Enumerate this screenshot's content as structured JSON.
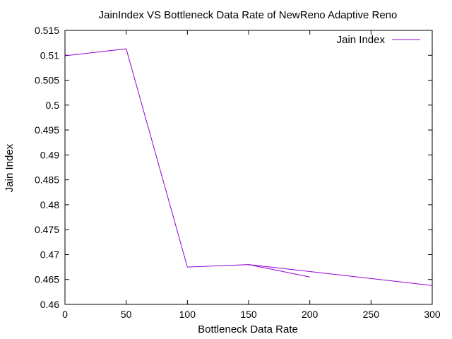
{
  "chart_data": {
    "type": "line",
    "title": "JainIndex VS Bottleneck Data Rate of NewReno  Adaptive Reno",
    "xlabel": "Bottleneck Data Rate",
    "ylabel": "Jain Index",
    "xlim": [
      0,
      300
    ],
    "ylim": [
      0.46,
      0.515
    ],
    "xticks": [
      0,
      50,
      100,
      150,
      200,
      250,
      300
    ],
    "yticks": [
      0.46,
      0.465,
      0.47,
      0.475,
      0.48,
      0.485,
      0.49,
      0.495,
      0.5,
      0.505,
      0.51,
      0.515
    ],
    "xtick_labels": [
      "0",
      "50",
      "100",
      "150",
      "200",
      "250",
      "300"
    ],
    "ytick_labels": [
      "0.46",
      "0.465",
      "0.47",
      "0.475",
      "0.48",
      "0.485",
      "0.49",
      "0.495",
      "0.5",
      "0.505",
      "0.51",
      "0.515"
    ],
    "grid": false,
    "legend_position": "top-right",
    "series": [
      {
        "name": "Jain Index",
        "color": "#9400D3",
        "x": [
          0,
          50,
          100,
          150,
          300,
          150,
          200
        ],
        "y": [
          0.5099,
          0.5113,
          0.4675,
          0.468,
          0.4638,
          0.468,
          0.4655
        ]
      }
    ]
  }
}
